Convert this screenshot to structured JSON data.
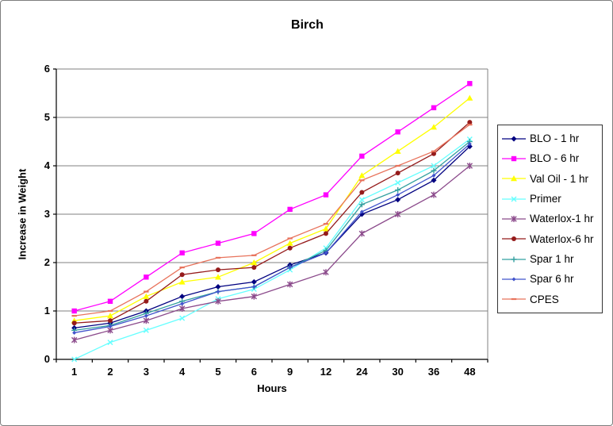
{
  "window": {
    "frame_border_color": "#7E7E7E",
    "background_color": "#FFFFFF"
  },
  "colors": {
    "grid": "#808080",
    "axis": "#000000",
    "legend_border": "#333333",
    "text": "#000000"
  },
  "chart_data": {
    "type": "line",
    "title": "Birch",
    "xlabel": "Hours",
    "ylabel": "Increase in Weight",
    "categories": [
      "1",
      "2",
      "3",
      "4",
      "5",
      "6",
      "9",
      "12",
      "24",
      "30",
      "36",
      "48"
    ],
    "ylim": [
      0,
      6
    ],
    "yticks": [
      0,
      1,
      2,
      3,
      4,
      5,
      6
    ],
    "grid": "horizontal-gray-lines",
    "legend_position": "right",
    "series": [
      {
        "name": "BLO - 1 hr",
        "color": "#000080",
        "marker": "diamond",
        "values": [
          0.65,
          0.75,
          1.0,
          1.3,
          1.5,
          1.6,
          1.95,
          2.2,
          3.0,
          3.3,
          3.7,
          4.4
        ]
      },
      {
        "name": "BLO - 6 hr",
        "color": "#FF00FF",
        "marker": "square",
        "values": [
          1.0,
          1.2,
          1.7,
          2.2,
          2.4,
          2.6,
          3.1,
          3.4,
          4.2,
          4.7,
          5.2,
          5.7
        ]
      },
      {
        "name": "Val Oil - 1 hr",
        "color": "#FFFF00",
        "marker": "triangle",
        "values": [
          0.8,
          0.9,
          1.3,
          1.6,
          1.7,
          2.0,
          2.4,
          2.7,
          3.8,
          4.3,
          4.8,
          5.4
        ]
      },
      {
        "name": "Primer",
        "color": "#66FFFF",
        "marker": "x",
        "values": [
          0.0,
          0.35,
          0.6,
          0.85,
          1.25,
          1.45,
          1.85,
          2.3,
          3.3,
          3.65,
          4.0,
          4.55
        ]
      },
      {
        "name": "Waterlox-1 hr",
        "color": "#8B4A8B",
        "marker": "asterisk",
        "values": [
          0.4,
          0.6,
          0.8,
          1.05,
          1.2,
          1.3,
          1.55,
          1.8,
          2.6,
          3.0,
          3.4,
          4.0
        ]
      },
      {
        "name": "Waterlox-6 hr",
        "color": "#951B1B",
        "marker": "circle",
        "values": [
          0.75,
          0.8,
          1.2,
          1.75,
          1.85,
          1.9,
          2.3,
          2.6,
          3.45,
          3.85,
          4.25,
          4.9
        ]
      },
      {
        "name": "Spar 1 hr",
        "color": "#33A0A0",
        "marker": "plus",
        "values": [
          0.6,
          0.7,
          0.95,
          1.2,
          1.4,
          1.5,
          1.9,
          2.25,
          3.2,
          3.5,
          3.9,
          4.5
        ]
      },
      {
        "name": "Spar 6 hr",
        "color": "#4153CC",
        "marker": "diamond-small",
        "values": [
          0.55,
          0.68,
          0.9,
          1.15,
          1.4,
          1.5,
          1.9,
          2.2,
          3.05,
          3.4,
          3.8,
          4.45
        ]
      },
      {
        "name": "CPES",
        "color": "#E8735C",
        "marker": "dash",
        "values": [
          0.9,
          1.0,
          1.4,
          1.9,
          2.1,
          2.15,
          2.5,
          2.8,
          3.7,
          4.0,
          4.3,
          4.85
        ]
      }
    ]
  }
}
